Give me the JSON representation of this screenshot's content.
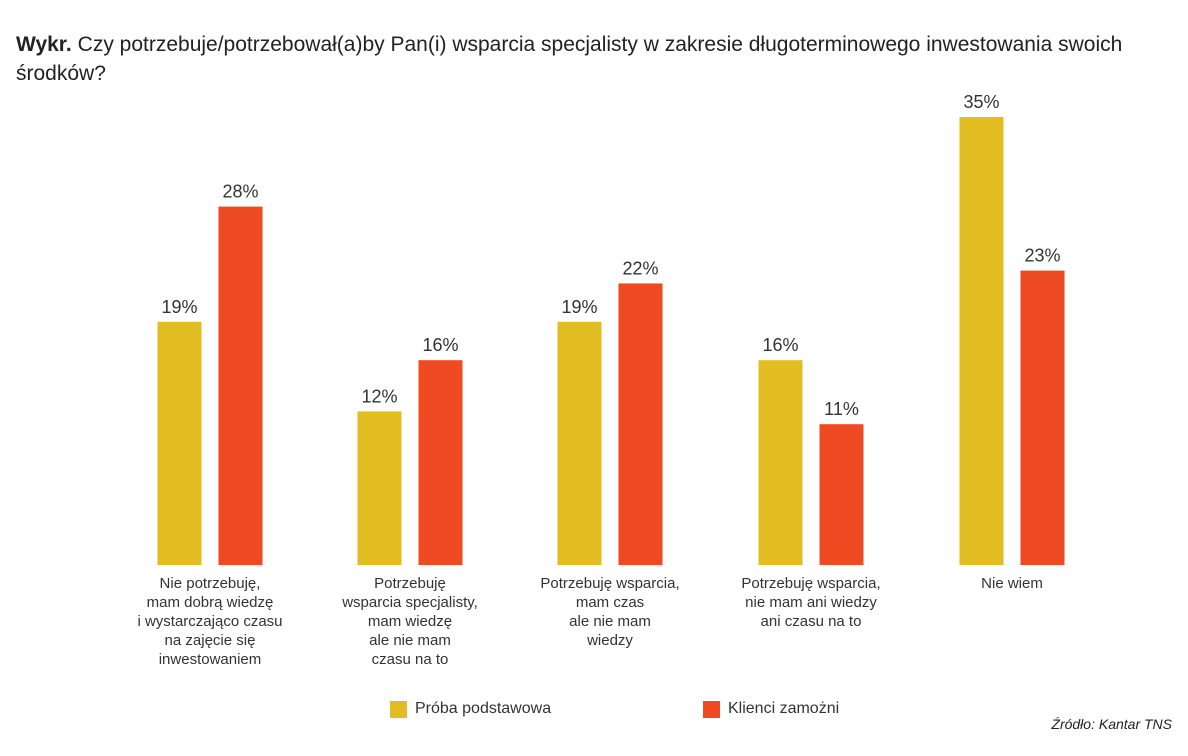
{
  "title": {
    "prefix": "Wykr.",
    "text": "Czy potrzebuje/potrzebował(a)by Pan(i) wsparcia specjalisty w zakresie długoterminowego inwestowania swoich środków?"
  },
  "source": "Źródło: Kantar TNS",
  "colors": {
    "accent": "#e2bd21",
    "series1": "#e2bd21",
    "series2": "#ee4b22"
  },
  "chart_data": {
    "type": "bar",
    "title": "Czy potrzebuje/potrzebował(a)by Pan(i) wsparcia specjalisty w zakresie długoterminowego inwestowania swoich środków?",
    "categories": [
      [
        "Nie potrzebuję,",
        "mam dobrą wiedzę",
        "i wystarczająco czasu",
        "na zajęcie się",
        "inwestowaniem"
      ],
      [
        "Potrzebuję",
        "wsparcia specjalisty,",
        "mam wiedzę",
        "ale nie mam",
        "czasu na to"
      ],
      [
        "Potrzebuję wsparcia,",
        "mam czas",
        "ale nie mam",
        "wiedzy"
      ],
      [
        "Potrzebuję wsparcia,",
        "nie mam ani wiedzy",
        "ani czasu na to"
      ],
      [
        "Nie wiem"
      ]
    ],
    "series": [
      {
        "name": "Próba podstawowa",
        "values": [
          19,
          12,
          19,
          16,
          35
        ],
        "labels": [
          "19%",
          "12%",
          "19%",
          "16%",
          "35%"
        ]
      },
      {
        "name": "Klienci zamożni",
        "values": [
          28,
          16,
          22,
          11,
          23
        ],
        "labels": [
          "28%",
          "16%",
          "22%",
          "11%",
          "23%"
        ]
      }
    ],
    "ylim": [
      0,
      35
    ],
    "grid": false,
    "legend_position": "bottom"
  }
}
